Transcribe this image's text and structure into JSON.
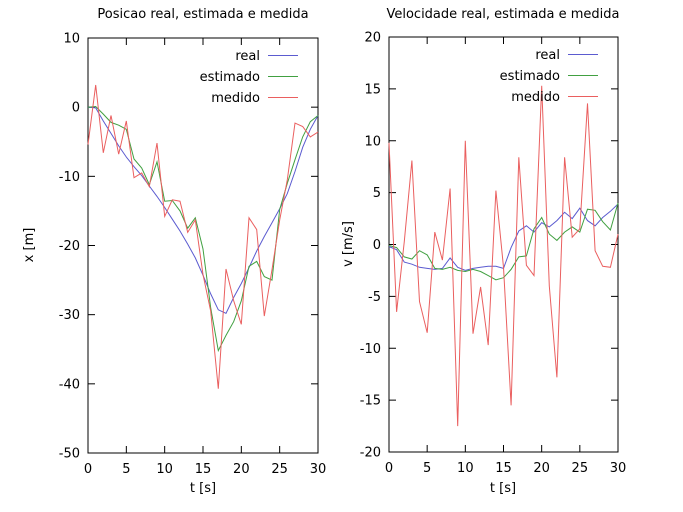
{
  "figure": {
    "background": "#ffffff",
    "axis_color": "#000000"
  },
  "chart_data": [
    {
      "type": "line",
      "title": "Posicao real, estimada e medida",
      "xlabel": "t [s]",
      "ylabel": "x [m]",
      "xlim": [
        0,
        30
      ],
      "ylim": [
        -50,
        10
      ],
      "xticks": [
        0,
        5,
        10,
        15,
        20,
        25,
        30
      ],
      "yticks": [
        10,
        0,
        -10,
        -20,
        -30,
        -40,
        -50
      ],
      "grid": false,
      "legend_position": "top-right-inside",
      "x": [
        0,
        1,
        2,
        3,
        4,
        5,
        6,
        7,
        8,
        9,
        10,
        11,
        12,
        13,
        14,
        15,
        16,
        17,
        18,
        19,
        20,
        21,
        22,
        23,
        24,
        25,
        26,
        27,
        28,
        29,
        30
      ],
      "series": [
        {
          "name": "real",
          "color": "#5b5bd0",
          "values": [
            0,
            -0.1,
            -2.0,
            -3.8,
            -5.6,
            -7.2,
            -8.6,
            -9.9,
            -11.4,
            -12.9,
            -14.5,
            -16.2,
            -17.9,
            -19.8,
            -21.8,
            -24.3,
            -27.0,
            -29.3,
            -29.8,
            -27.5,
            -25.5,
            -23.2,
            -20.8,
            -18.7,
            -16.7,
            -14.7,
            -12.5,
            -9.3,
            -5.8,
            -3.2,
            -1.2
          ]
        },
        {
          "name": "estimado",
          "color": "#41a041",
          "values": [
            0,
            0.1,
            -1.0,
            -2.2,
            -2.6,
            -3.2,
            -7.5,
            -8.8,
            -11.2,
            -7.9,
            -13.6,
            -13.5,
            -15.0,
            -17.5,
            -16.0,
            -20.5,
            -29.0,
            -35.2,
            -33.0,
            -31.0,
            -28.0,
            -23.0,
            -22.3,
            -24.5,
            -25.0,
            -14.8,
            -11.0,
            -7.6,
            -4.3,
            -2.1,
            -1.2
          ]
        },
        {
          "name": "medido",
          "color": "#ea5f5f",
          "values": [
            -5.4,
            3.2,
            -6.6,
            -1.2,
            -6.8,
            -2.0,
            -10.2,
            -9.5,
            -11.5,
            -5.2,
            -15.8,
            -13.4,
            -13.6,
            -18.1,
            -16.3,
            -24.2,
            -29.5,
            -40.7,
            -23.4,
            -28.0,
            -31.4,
            -16.0,
            -17.7,
            -30.2,
            -23.5,
            -16.3,
            -10.5,
            -2.3,
            -2.8,
            -4.3,
            -3.6
          ]
        }
      ]
    },
    {
      "type": "line",
      "title": "Velocidade real, estimada e medida",
      "xlabel": "t [s]",
      "ylabel": "v [m/s]",
      "xlim": [
        0,
        30
      ],
      "ylim": [
        -20,
        20
      ],
      "xticks": [
        0,
        5,
        10,
        15,
        20,
        25,
        30
      ],
      "yticks": [
        20,
        15,
        10,
        5,
        0,
        -5,
        -10,
        -15,
        -20
      ],
      "grid": false,
      "legend_position": "top-right-inside",
      "x": [
        0,
        1,
        2,
        3,
        4,
        5,
        6,
        7,
        8,
        9,
        10,
        11,
        12,
        13,
        14,
        15,
        16,
        17,
        18,
        19,
        20,
        21,
        22,
        23,
        24,
        25,
        26,
        27,
        28,
        29,
        30
      ],
      "series": [
        {
          "name": "real",
          "color": "#5b5bd0",
          "values": [
            -0.2,
            -0.5,
            -1.7,
            -1.9,
            -2.2,
            -2.3,
            -2.4,
            -2.3,
            -1.3,
            -2.2,
            -2.5,
            -2.3,
            -2.2,
            -2.1,
            -2.1,
            -2.3,
            -0.3,
            1.3,
            1.8,
            1.2,
            2.1,
            1.7,
            2.3,
            3.1,
            2.5,
            3.5,
            2.3,
            1.8,
            2.6,
            3.2,
            3.9
          ]
        },
        {
          "name": "estimado",
          "color": "#41a041",
          "values": [
            -0.1,
            -0.3,
            -1.2,
            -1.4,
            -0.6,
            -1.0,
            -2.3,
            -2.4,
            -2.2,
            -2.5,
            -2.6,
            -2.4,
            -2.6,
            -3.0,
            -3.4,
            -3.2,
            -2.4,
            -1.2,
            -1.1,
            1.5,
            2.6,
            1.0,
            0.4,
            1.2,
            1.7,
            1.2,
            3.4,
            3.3,
            2.2,
            1.4,
            4.0
          ]
        },
        {
          "name": "medido",
          "color": "#ea5f5f",
          "values": [
            9.8,
            -6.5,
            0.3,
            8.1,
            -5.5,
            -8.5,
            1.2,
            -1.5,
            5.4,
            -17.5,
            10.0,
            -8.6,
            -4.1,
            -9.7,
            5.2,
            -2.2,
            -15.5,
            8.4,
            -2.0,
            -3.0,
            15.3,
            -4.0,
            -12.8,
            8.4,
            0.7,
            1.5,
            13.6,
            -0.6,
            -2.1,
            -2.2,
            1.0
          ]
        }
      ]
    }
  ]
}
